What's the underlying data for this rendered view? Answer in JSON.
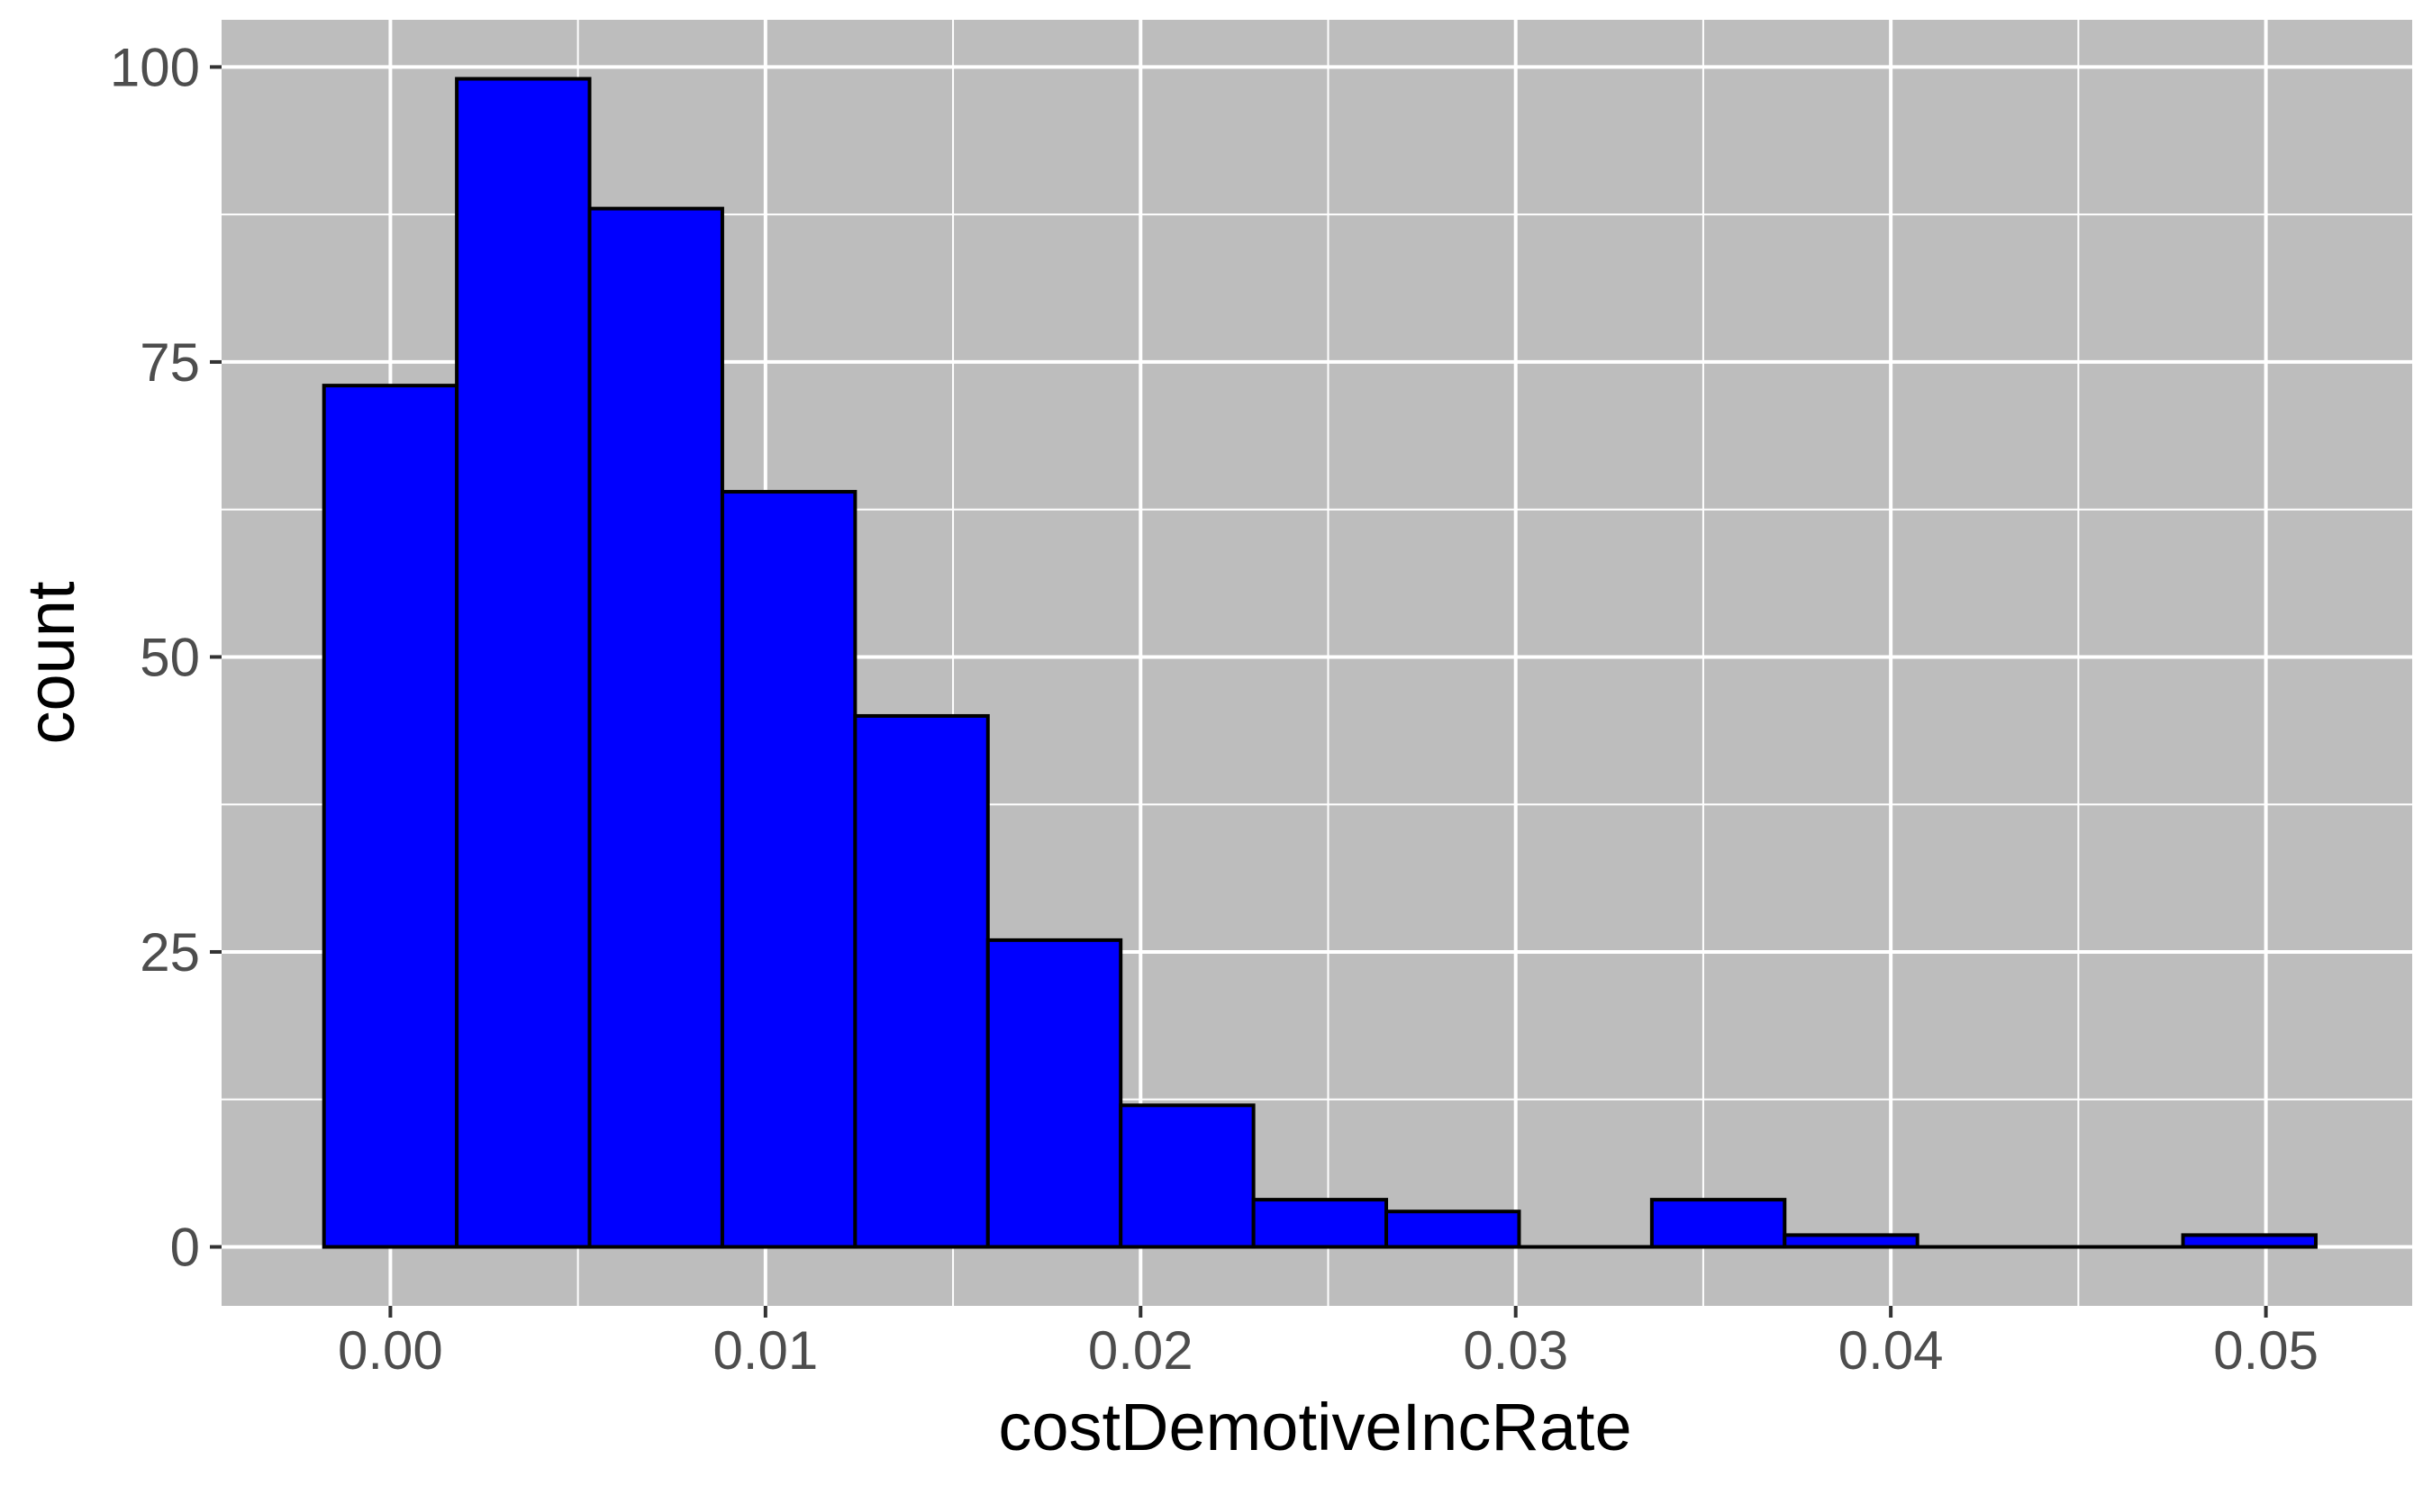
{
  "chart_data": {
    "type": "bar",
    "title": "",
    "xlabel": "costDemotiveIncRate",
    "ylabel": "count",
    "bin_width": 0.00354,
    "bins": [
      {
        "x_start": -0.00177,
        "x_end": 0.00177,
        "count": 73
      },
      {
        "x_start": 0.00177,
        "x_end": 0.00531,
        "count": 99
      },
      {
        "x_start": 0.00531,
        "x_end": 0.00885,
        "count": 88
      },
      {
        "x_start": 0.00885,
        "x_end": 0.01239,
        "count": 64
      },
      {
        "x_start": 0.01239,
        "x_end": 0.01593,
        "count": 45
      },
      {
        "x_start": 0.01593,
        "x_end": 0.01947,
        "count": 26
      },
      {
        "x_start": 0.01947,
        "x_end": 0.02301,
        "count": 12
      },
      {
        "x_start": 0.02301,
        "x_end": 0.02655,
        "count": 4
      },
      {
        "x_start": 0.02655,
        "x_end": 0.03009,
        "count": 3
      },
      {
        "x_start": 0.03009,
        "x_end": 0.03363,
        "count": 0
      },
      {
        "x_start": 0.03363,
        "x_end": 0.03717,
        "count": 4
      },
      {
        "x_start": 0.03717,
        "x_end": 0.04071,
        "count": 1
      },
      {
        "x_start": 0.04071,
        "x_end": 0.04425,
        "count": 0
      },
      {
        "x_start": 0.04425,
        "x_end": 0.04779,
        "count": 0
      },
      {
        "x_start": 0.04779,
        "x_end": 0.05133,
        "count": 1
      }
    ],
    "xlim": [
      -0.0045,
      0.0539
    ],
    "ylim": [
      -5,
      104
    ],
    "x_ticks": [
      {
        "value": 0.0,
        "label": "0.00"
      },
      {
        "value": 0.01,
        "label": "0.01"
      },
      {
        "value": 0.02,
        "label": "0.02"
      },
      {
        "value": 0.03,
        "label": "0.03"
      },
      {
        "value": 0.04,
        "label": "0.04"
      },
      {
        "value": 0.05,
        "label": "0.05"
      }
    ],
    "y_ticks": [
      {
        "value": 0,
        "label": "0"
      },
      {
        "value": 25,
        "label": "25"
      },
      {
        "value": 50,
        "label": "50"
      },
      {
        "value": 75,
        "label": "75"
      },
      {
        "value": 100,
        "label": "100"
      }
    ],
    "grid": true,
    "legend": "none",
    "colors": {
      "bar_fill": "#0000ff",
      "bar_stroke": "#000000",
      "panel_background": "#bdbdbd",
      "grid": "#ffffff",
      "tick_text": "#4d4d4d"
    }
  }
}
